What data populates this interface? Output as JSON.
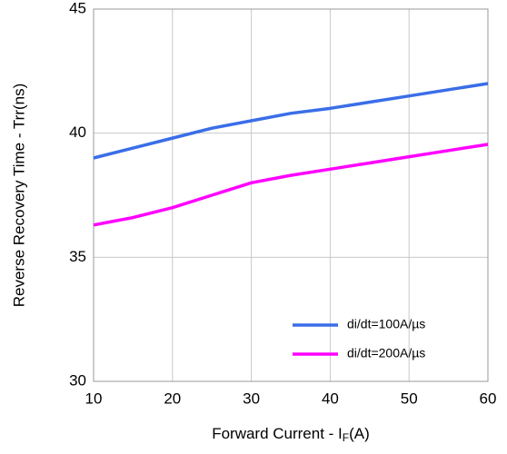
{
  "chart_data": {
    "type": "line",
    "xlabel": {
      "main": "Forward Current - I",
      "sub": "F",
      "end": "(A)"
    },
    "ylabel": "Reverse Recovery Time - Trr(ns)",
    "x": [
      10,
      15,
      20,
      25,
      30,
      35,
      40,
      45,
      50,
      55,
      60
    ],
    "series": [
      {
        "name": "di/dt=100A/µs",
        "color": "#3a6ee8",
        "values": [
          39.0,
          39.4,
          39.8,
          40.2,
          40.5,
          40.8,
          41.0,
          41.25,
          41.5,
          41.75,
          42.0
        ]
      },
      {
        "name": "di/dt=200A/µs",
        "color": "#ff00ff",
        "values": [
          36.3,
          36.6,
          37.0,
          37.5,
          38.0,
          38.3,
          38.55,
          38.8,
          39.05,
          39.3,
          39.55
        ]
      }
    ],
    "xlim": [
      10,
      60
    ],
    "xticks": [
      10,
      20,
      30,
      40,
      50,
      60
    ],
    "ylim": [
      30,
      45
    ],
    "yticks": [
      30,
      35,
      40,
      45
    ],
    "grid": true,
    "legend": "lower-right"
  }
}
